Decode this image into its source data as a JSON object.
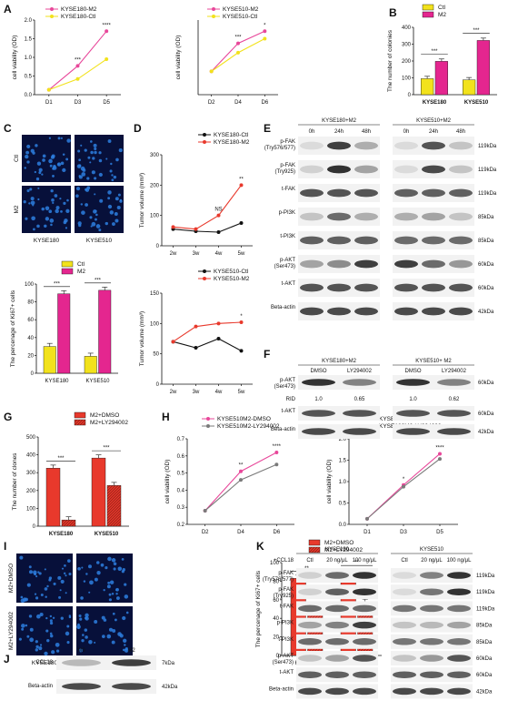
{
  "panels": {
    "A": "A",
    "B": "B",
    "C": "C",
    "D": "D",
    "E": "E",
    "F": "F",
    "G": "G",
    "H": "H",
    "I": "I",
    "J": "J",
    "K": "K"
  },
  "colors": {
    "pink": "#e8479a",
    "yellow": "#f2e21c",
    "red": "#e8392c",
    "gray": "#7a7a7a",
    "black": "#111111",
    "magenta": "#e4268f",
    "blot_bg": "#f2f2f2",
    "cell_bg": "#07103a",
    "cell_dot": "#2d7fe0"
  },
  "chart_data": [
    {
      "id": "A1",
      "type": "line",
      "xlabel": "",
      "ylabel": "cell viability (OD)",
      "categories": [
        "D1",
        "D3",
        "D5"
      ],
      "ylim": [
        0,
        2.0
      ],
      "yticks": [
        "0.0",
        "0.5",
        "1.0",
        "1.5",
        "2.0"
      ],
      "series": [
        {
          "name": "KYSE180-M2",
          "values": [
            0.13,
            0.77,
            1.7
          ],
          "color": "#e8479a"
        },
        {
          "name": "KYSE180-Ctl",
          "values": [
            0.13,
            0.42,
            0.95
          ],
          "color": "#f2e21c"
        }
      ],
      "annotations": [
        "***",
        "****"
      ]
    },
    {
      "id": "A2",
      "type": "line",
      "xlabel": "",
      "ylabel": "cell viability (OD)",
      "categories": [
        "D2",
        "D4",
        "D6"
      ],
      "ylim": [
        0,
        0.8
      ],
      "yticks": [],
      "series": [
        {
          "name": "KYSE510-M2",
          "values": [
            0.25,
            0.55,
            0.68
          ],
          "color": "#e8479a"
        },
        {
          "name": "KYSE510-Ctl",
          "values": [
            0.25,
            0.45,
            0.6
          ],
          "color": "#f2e21c"
        }
      ],
      "annotations": [
        "***",
        "*"
      ]
    },
    {
      "id": "B",
      "type": "bar",
      "ylabel": "The number of colonies",
      "categories": [
        "KYSE180",
        "KYSE510"
      ],
      "ylim": [
        0,
        400
      ],
      "yticks": [
        "0",
        "100",
        "200",
        "300",
        "400"
      ],
      "series": [
        {
          "name": "Ctl",
          "values": [
            95,
            88
          ],
          "color": "#f2e21c"
        },
        {
          "name": "M2",
          "values": [
            198,
            322
          ],
          "color": "#e4268f"
        }
      ],
      "annotations": [
        "***",
        "***"
      ]
    },
    {
      "id": "C",
      "type": "bar",
      "ylabel": "The percenage of Ki67+ cells",
      "categories": [
        "KYSE180",
        "KYSE510"
      ],
      "ylim": [
        0,
        100
      ],
      "yticks": [
        "0",
        "20",
        "40",
        "60",
        "80",
        "100"
      ],
      "series": [
        {
          "name": "Ctl",
          "values": [
            30,
            19
          ],
          "color": "#f2e21c"
        },
        {
          "name": "M2",
          "values": [
            89,
            93
          ],
          "color": "#e4268f"
        }
      ],
      "annotations": [
        "***",
        "***"
      ]
    },
    {
      "id": "D1",
      "type": "line",
      "ylabel": "Tumor volume (mm³)",
      "categories": [
        "2w",
        "3w",
        "4w",
        "5w"
      ],
      "ylim": [
        0,
        300
      ],
      "yticks": [
        "0",
        "100",
        "200",
        "300"
      ],
      "series": [
        {
          "name": "KYSE180-Ctl",
          "values": [
            55,
            48,
            45,
            75
          ],
          "color": "#111111"
        },
        {
          "name": "KYSE180-M2",
          "values": [
            62,
            55,
            100,
            200
          ],
          "color": "#e8392c"
        }
      ],
      "annotations": [
        "NS",
        "**"
      ]
    },
    {
      "id": "D2",
      "type": "line",
      "ylabel": "Tumor volume (mm³)",
      "categories": [
        "2w",
        "3w",
        "4w",
        "5w"
      ],
      "ylim": [
        0,
        150
      ],
      "yticks": [
        "0",
        "50",
        "100",
        "150"
      ],
      "series": [
        {
          "name": "KYSE510-Ctl",
          "values": [
            70,
            60,
            75,
            55
          ],
          "color": "#111111"
        },
        {
          "name": "KYSE510-M2",
          "values": [
            70,
            95,
            100,
            102
          ],
          "color": "#e8392c"
        }
      ],
      "annotations": [
        "*"
      ]
    },
    {
      "id": "G",
      "type": "bar",
      "ylabel": "The number of clones",
      "categories": [
        "KYSE180",
        "KYSE510"
      ],
      "ylim": [
        0,
        500
      ],
      "yticks": [
        "0",
        "100",
        "200",
        "300",
        "400",
        "500"
      ],
      "series": [
        {
          "name": "M2+DMSO",
          "values": [
            325,
            382
          ],
          "color": "#e8392c"
        },
        {
          "name": "M2+LY294002",
          "values": [
            35,
            228
          ],
          "color": "#e8392c"
        }
      ],
      "annotations": [
        "***",
        "***"
      ]
    },
    {
      "id": "H1",
      "type": "line",
      "ylabel": "cell viability (OD)",
      "categories": [
        "D2",
        "D4",
        "D6"
      ],
      "ylim": [
        0.2,
        0.7
      ],
      "yticks": [
        "0.2",
        "0.3",
        "0.4",
        "0.5",
        "0.6",
        "0.7"
      ],
      "series": [
        {
          "name": "KYSE510M2-DMSO",
          "values": [
            0.28,
            0.51,
            0.62
          ],
          "color": "#e8479a"
        },
        {
          "name": "KYSE510M2-LY294002",
          "values": [
            0.28,
            0.46,
            0.55
          ],
          "color": "#7a7a7a"
        }
      ],
      "annotations": [
        "**",
        "****"
      ]
    },
    {
      "id": "H2",
      "type": "line",
      "ylabel": "cell viability (OD)",
      "categories": [
        "D1",
        "D3",
        "D5"
      ],
      "ylim": [
        0,
        2.0
      ],
      "yticks": [
        "0.0",
        "0.5",
        "1.0",
        "1.5",
        "2.0"
      ],
      "series": [
        {
          "name": "KYSE180M2-DMSO",
          "values": [
            0.13,
            0.92,
            1.65
          ],
          "color": "#e8479a"
        },
        {
          "name": "KYSE180M2-LY294002",
          "values": [
            0.13,
            0.88,
            1.53
          ],
          "color": "#7a7a7a"
        }
      ],
      "annotations": [
        "*",
        "****"
      ]
    },
    {
      "id": "I",
      "type": "bar",
      "ylabel": "The percenage of Ki67+ cells",
      "categories": [
        "KYSE180",
        "KYSE510"
      ],
      "ylim": [
        0,
        100
      ],
      "yticks": [
        "0",
        "20",
        "40",
        "60",
        "80",
        "100"
      ],
      "series": [
        {
          "name": "M2+DMSO",
          "values": [
            83,
            89
          ],
          "color": "#e8392c"
        },
        {
          "name": "M2+LY294002",
          "values": [
            44,
            57
          ],
          "color": "#e8392c"
        }
      ],
      "annotations": [
        "**",
        "**"
      ]
    }
  ],
  "C": {
    "row_labels": [
      "Ctl",
      "M2"
    ],
    "col_labels": [
      "KYSE180",
      "KYSE510"
    ]
  },
  "E": {
    "headers": [
      "KYSE180+M2",
      "KYSE510+M2"
    ],
    "times": [
      "0h",
      "24h",
      "48h"
    ],
    "rows": [
      "p-FAK\n(Try576/577)",
      "p-FAK\n(Try925)",
      "t-FAK",
      "p-PI3K",
      "t-PI3K",
      "p-AKT\n(Ser473)",
      "t-AKT",
      "Beta-actin"
    ],
    "kda": [
      "119kDa",
      "119kDa",
      "119kDa",
      "85kDa",
      "85kDa",
      "60kDa",
      "60kDa",
      "42kDa"
    ]
  },
  "F": {
    "headers": [
      "KYSE180+M2",
      "KYSE510+ M2"
    ],
    "lanes": [
      "DMSO",
      "LY294002"
    ],
    "rows": [
      "p-AKT\n(Ser473)",
      "t-AKT",
      "Beta-actin"
    ],
    "kda": [
      "60kDa",
      "60kDa",
      "42kDa"
    ],
    "rid_label": "RID",
    "rid": [
      "1.0",
      "0.65",
      "1.0",
      "0.62"
    ]
  },
  "I": {
    "row_labels": [
      "M2+DMSO",
      "M2+LY294002"
    ],
    "col_labels": [
      "KYSE180",
      "KYSE510"
    ]
  },
  "J": {
    "lanes": [
      "M0",
      "M2"
    ],
    "rows": [
      "CCL18",
      "Beta-actin"
    ],
    "kda": [
      "7kDa",
      "42kDa"
    ]
  },
  "K": {
    "treatment": "+CCL18",
    "headers": [
      "KYSE180",
      "KYSE510"
    ],
    "lanes": [
      "Ctl",
      "20 ng/μL",
      "100 ng/μL"
    ],
    "rows": [
      "p-FAK\n(Try576/577)",
      "p-FAK\n(Try925)",
      "t-FAK",
      "p-PI3K",
      "t-PI3K",
      "p-AKT\n(Ser473)",
      "t-AKT",
      "Beta-actin"
    ],
    "kda": [
      "119kDa",
      "119kDa",
      "119kDa",
      "85kDa",
      "85kDa",
      "60kDa",
      "60kDa",
      "42kDa"
    ]
  }
}
